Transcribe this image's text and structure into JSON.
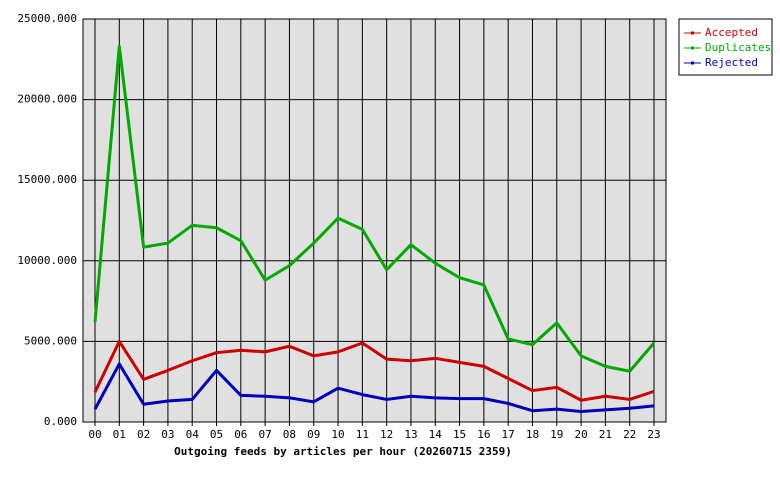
{
  "chart_data": {
    "type": "line",
    "x_label": "Outgoing feeds by articles per hour (20260715 2359)",
    "categories": [
      "00",
      "01",
      "02",
      "03",
      "04",
      "05",
      "06",
      "07",
      "08",
      "09",
      "10",
      "11",
      "12",
      "13",
      "14",
      "15",
      "16",
      "17",
      "18",
      "19",
      "20",
      "21",
      "22",
      "23"
    ],
    "series": [
      {
        "name": "Accepted",
        "color": "#cc0000",
        "values": [
          1850,
          5000,
          2650,
          3200,
          3800,
          4300,
          4450,
          4350,
          4700,
          4100,
          4350,
          4900,
          3900,
          3800,
          3950,
          3700,
          3450,
          2700,
          1950,
          2150,
          1350,
          1600,
          1400,
          1900
        ]
      },
      {
        "name": "Duplicates",
        "color": "#00aa00",
        "values": [
          6200,
          23300,
          10850,
          11100,
          12200,
          12050,
          11250,
          8800,
          9700,
          11100,
          12650,
          11950,
          9450,
          11000,
          9850,
          8950,
          8500,
          5150,
          4800,
          6150,
          4100,
          3450,
          3150,
          4900
        ]
      },
      {
        "name": "Rejected",
        "color": "#0000bb",
        "values": [
          800,
          3600,
          1100,
          1300,
          1400,
          3200,
          1650,
          1600,
          1500,
          1250,
          2100,
          1700,
          1400,
          1600,
          1500,
          1450,
          1450,
          1150,
          700,
          800,
          650,
          750,
          850,
          1000
        ]
      }
    ],
    "ylim": [
      0,
      25000
    ],
    "yticks": [
      {
        "value": 0,
        "label": "0.000"
      },
      {
        "value": 5000,
        "label": "5000.000"
      },
      {
        "value": 10000,
        "label": "10000.000"
      },
      {
        "value": 15000,
        "label": "15000.000"
      },
      {
        "value": 20000,
        "label": "20000.000"
      },
      {
        "value": 25000,
        "label": "25000.000"
      }
    ],
    "grid": true,
    "legend": "top-right"
  }
}
